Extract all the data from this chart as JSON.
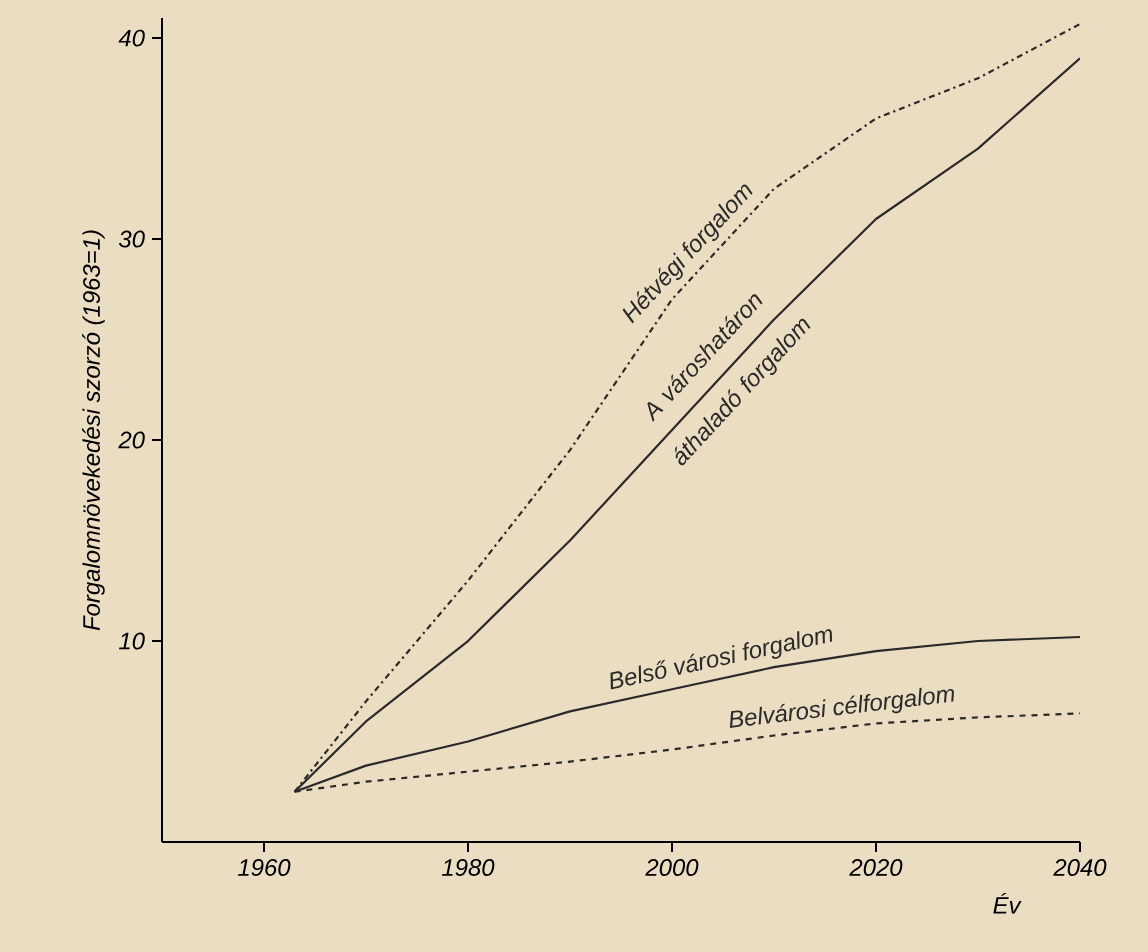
{
  "chart_data": {
    "type": "line",
    "xlabel": "Év",
    "ylabel": "Forgalomnövekedési szorzó (1963=1)",
    "xlim": [
      1950,
      2040
    ],
    "ylim": [
      0,
      41
    ],
    "xticks": [
      1960,
      1980,
      2000,
      2020,
      2040
    ],
    "yticks": [
      10,
      20,
      30,
      40
    ],
    "grid": false,
    "legend": false,
    "marker": "none",
    "series": [
      {
        "name": "Hétvégi forgalom",
        "color": "#2a2a2a",
        "line_style": "dashdot",
        "x": [
          1963,
          1970,
          1980,
          1990,
          2000,
          2010,
          2020,
          2030,
          2040
        ],
        "values": [
          2.5,
          7,
          13,
          19.5,
          27,
          32.5,
          36,
          38,
          40.7
        ]
      },
      {
        "name": "A városhatáron áthaladó forgalom",
        "color": "#2a2a2a",
        "line_style": "solid",
        "x": [
          1963,
          1970,
          1980,
          1990,
          2000,
          2010,
          2020,
          2030,
          2040
        ],
        "values": [
          2.5,
          6,
          10,
          15,
          20.5,
          26,
          31,
          34.5,
          39
        ]
      },
      {
        "name": "Belső városi forgalom",
        "color": "#2a2a2a",
        "line_style": "solid",
        "x": [
          1963,
          1970,
          1980,
          1990,
          2000,
          2010,
          2020,
          2030,
          2040
        ],
        "values": [
          2.5,
          3.8,
          5,
          6.5,
          7.6,
          8.7,
          9.5,
          10,
          10.2
        ]
      },
      {
        "name": "Belvárosi célforgalom",
        "color": "#2a2a2a",
        "line_style": "dashed",
        "x": [
          1963,
          1970,
          1980,
          1990,
          2000,
          2010,
          2020,
          2030,
          2040
        ],
        "values": [
          2.5,
          3,
          3.5,
          4,
          4.6,
          5.3,
          5.9,
          6.2,
          6.4
        ]
      }
    ]
  }
}
